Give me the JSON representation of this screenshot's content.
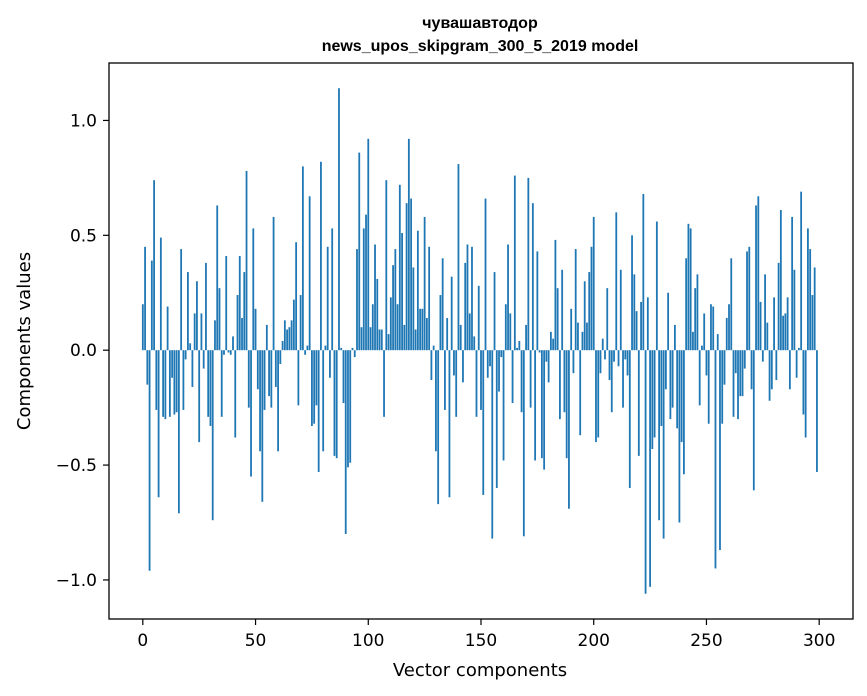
{
  "chart_data": {
    "type": "bar",
    "title_line1": "чувашавтодор",
    "title_line2": "news_upos_skipgram_300_5_2019 model",
    "xlabel": "Vector components",
    "ylabel": "Components values",
    "xlim": [
      -15,
      315
    ],
    "ylim": [
      -1.17,
      1.25
    ],
    "x_ticks": [
      0,
      50,
      100,
      150,
      200,
      250,
      300
    ],
    "x_tick_labels": [
      "0",
      "50",
      "100",
      "150",
      "200",
      "250",
      "300"
    ],
    "y_ticks": [
      -1.0,
      -0.5,
      0.0,
      0.5,
      1.0
    ],
    "y_tick_labels": [
      "−1.0",
      "−0.5",
      "0.0",
      "0.5",
      "1.0"
    ],
    "bar_color": "#1f77b4",
    "values": [
      0.2,
      0.45,
      -0.15,
      -0.96,
      0.39,
      0.74,
      -0.26,
      -0.64,
      0.49,
      -0.29,
      -0.3,
      0.19,
      -0.29,
      -0.12,
      -0.28,
      -0.27,
      -0.71,
      0.44,
      -0.26,
      -0.04,
      0.34,
      0.03,
      -0.16,
      0.16,
      0.3,
      -0.4,
      0.16,
      -0.08,
      0.38,
      -0.29,
      -0.33,
      -0.74,
      0.13,
      0.63,
      0.27,
      -0.29,
      -0.02,
      0.41,
      -0.01,
      -0.02,
      0.06,
      -0.38,
      0.24,
      0.41,
      0.14,
      0.34,
      0.78,
      -0.25,
      -0.55,
      0.53,
      0.18,
      -0.17,
      -0.44,
      -0.66,
      -0.26,
      0.11,
      -0.2,
      -0.25,
      0.58,
      -0.16,
      -0.44,
      -0.06,
      0.04,
      0.13,
      0.09,
      0.1,
      0.13,
      0.22,
      0.47,
      -0.24,
      0.24,
      0.8,
      -0.02,
      0.02,
      0.67,
      -0.33,
      -0.32,
      -0.24,
      -0.53,
      0.82,
      -0.44,
      0.02,
      0.45,
      -0.12,
      0.53,
      -0.46,
      -0.47,
      1.14,
      0.01,
      -0.23,
      -0.8,
      -0.51,
      -0.49,
      0.01,
      -0.03,
      0.44,
      0.86,
      0.1,
      0.53,
      0.59,
      0.92,
      0.1,
      0.2,
      0.46,
      0.31,
      0.09,
      0.09,
      -0.29,
      0.74,
      0.07,
      0.23,
      0.37,
      0.44,
      0.2,
      0.72,
      0.51,
      0.11,
      0.64,
      0.92,
      0.66,
      0.36,
      0.09,
      0.52,
      0.18,
      0.18,
      0.58,
      0.14,
      0.45,
      -0.13,
      0.02,
      -0.44,
      -0.67,
      0.24,
      0.4,
      -0.26,
      0.14,
      -0.64,
      0.32,
      -0.11,
      -0.29,
      0.81,
      0.11,
      -0.14,
      0.38,
      0.46,
      0.16,
      0.45,
      0.06,
      -0.29,
      0.28,
      -0.26,
      -0.63,
      0.66,
      -0.12,
      -0.07,
      -0.82,
      0.34,
      -0.6,
      -0.18,
      -0.03,
      -0.48,
      0.2,
      0.46,
      0.16,
      -0.23,
      0.76,
      0.01,
      0.04,
      -0.27,
      -0.81,
      0.11,
      0.75,
      -0.25,
      0.64,
      -0.48,
      0.43,
      -0.01,
      -0.47,
      -0.52,
      -0.05,
      -0.14,
      0.08,
      0.05,
      0.48,
      0.27,
      -0.3,
      0.35,
      -0.27,
      -0.47,
      -0.69,
      0.18,
      -0.1,
      0.44,
      0.12,
      -0.37,
      0.08,
      0.3,
      0.12,
      0.34,
      0.45,
      0.58,
      -0.4,
      -0.38,
      -0.1,
      0.05,
      -0.04,
      0.27,
      -0.13,
      -0.27,
      -0.05,
      0.6,
      -0.07,
      0.35,
      -0.25,
      -0.04,
      -0.11,
      -0.6,
      0.5,
      0.33,
      0.17,
      -0.46,
      0.21,
      0.68,
      -1.06,
      0.23,
      -1.03,
      -0.43,
      -0.38,
      0.56,
      -0.74,
      -0.33,
      -0.82,
      -0.17,
      0.25,
      -0.3,
      -0.25,
      0.11,
      -0.34,
      -0.75,
      -0.4,
      -0.54,
      0.4,
      0.55,
      0.53,
      0.08,
      0.27,
      0.33,
      -0.24,
      0.02,
      0.16,
      -0.11,
      -0.32,
      0.2,
      0.19,
      -0.95,
      0.07,
      -0.87,
      -0.32,
      -0.15,
      0.14,
      0.2,
      0.4,
      -0.29,
      -0.1,
      -0.3,
      -0.2,
      -0.2,
      -0.08,
      0.43,
      0.45,
      -0.17,
      -0.61,
      0.63,
      0.67,
      0.21,
      -0.05,
      0.33,
      0.12,
      -0.22,
      -0.17,
      0.23,
      -0.13,
      0.38,
      0.61,
      0.15,
      0.16,
      0.23,
      -0.17,
      0.58,
      0.35,
      -0.12,
      0.01,
      0.69,
      -0.28,
      -0.38,
      0.53,
      0.44,
      0.24,
      0.36,
      -0.53
    ]
  }
}
